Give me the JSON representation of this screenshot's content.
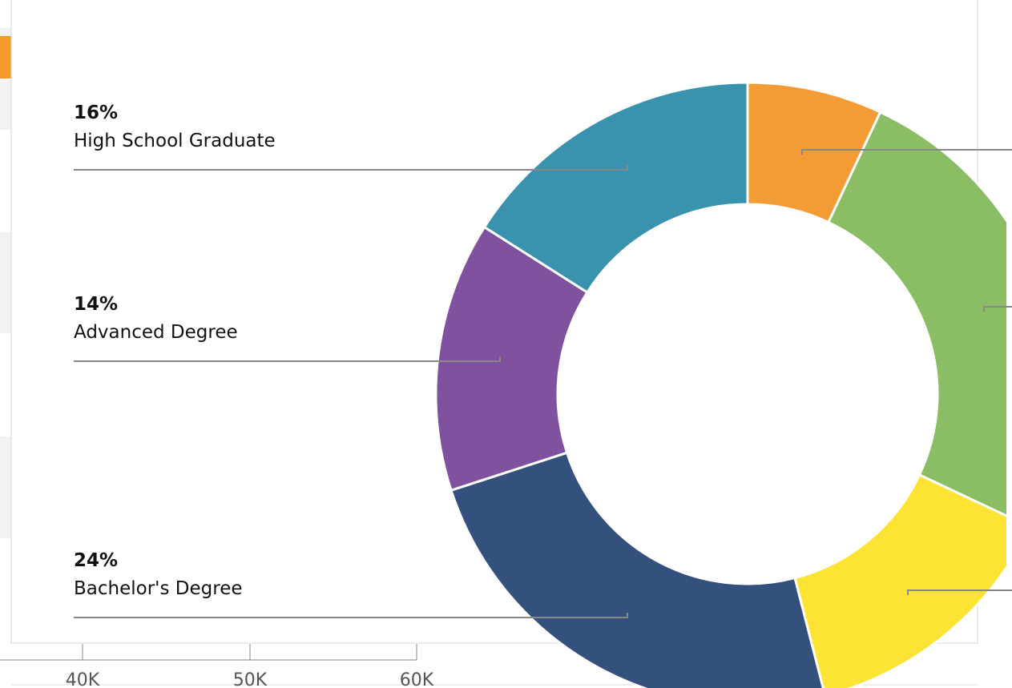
{
  "chart_data": {
    "type": "donut",
    "categories": [
      null,
      null,
      null,
      "Bachelor's Degree",
      "Advanced Degree",
      "High School Graduate"
    ],
    "values": [
      7,
      25,
      14,
      24,
      14,
      16
    ],
    "value_labels": [
      null,
      null,
      null,
      "24%",
      "14%",
      "16%"
    ],
    "colors": [
      "#f39c35",
      "#8bbd65",
      "#fde334",
      "#34507d",
      "#80519e",
      "#3992ae"
    ]
  },
  "axis": {
    "ticks": [
      "40K",
      "50K",
      "60K"
    ]
  }
}
